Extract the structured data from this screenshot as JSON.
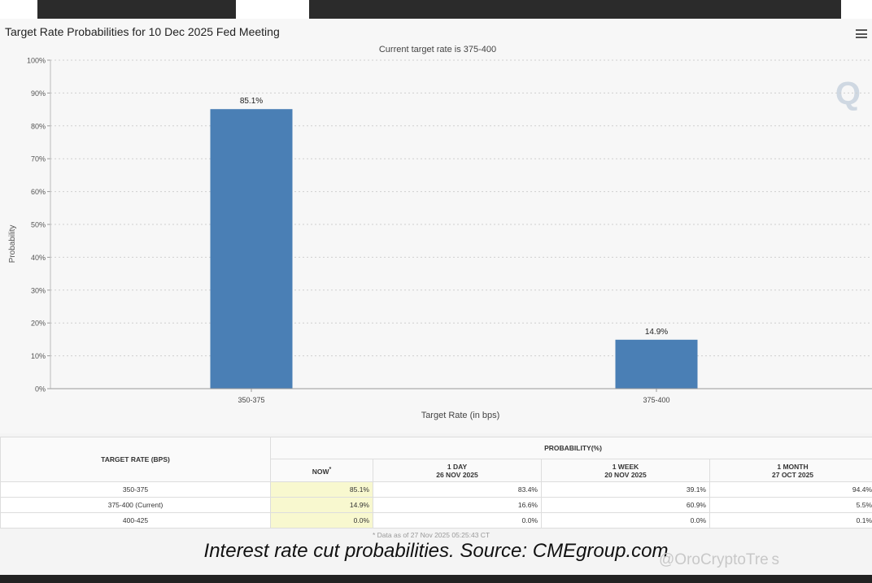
{
  "chart_title": "Target Rate Probabilities for 10 Dec 2025 Fed Meeting",
  "chart_data": {
    "type": "bar",
    "title": "Target Rate Probabilities for 10 Dec 2025 Fed Meeting",
    "subtitle": "Current target rate is 375-400",
    "categories": [
      "350-375",
      "375-400"
    ],
    "values": [
      85.1,
      14.9
    ],
    "value_labels": [
      "85.1%",
      "14.9%"
    ],
    "xlabel": "Target Rate (in bps)",
    "ylabel": "Probability",
    "ylim": [
      0,
      100
    ],
    "yticks": [
      "0%",
      "10%",
      "20%",
      "30%",
      "40%",
      "50%",
      "60%",
      "70%",
      "80%",
      "90%",
      "100%"
    ],
    "grid": true,
    "bar_color": "#4a7fb5"
  },
  "table": {
    "col_target": "TARGET RATE (BPS)",
    "col_prob": "PROBABILITY(%)",
    "sub_headers": [
      {
        "line1": "NOW",
        "line2": ""
      },
      {
        "line1": "1 DAY",
        "line2": "26 NOV 2025"
      },
      {
        "line1": "1 WEEK",
        "line2": "20 NOV 2025"
      },
      {
        "line1": "1 MONTH",
        "line2": "27 OCT 2025"
      }
    ],
    "now_mark": "*",
    "rows": [
      {
        "rate": "350-375",
        "now": "85.1%",
        "day": "83.4%",
        "week": "39.1%",
        "month": "94.4%"
      },
      {
        "rate": "375-400 (Current)",
        "now": "14.9%",
        "day": "16.6%",
        "week": "60.9%",
        "month": "5.5%"
      },
      {
        "rate": "400-425",
        "now": "0.0%",
        "day": "0.0%",
        "week": "0.0%",
        "month": "0.1%"
      }
    ],
    "footnote": "* Data as of 27 Nov 2025 05:25:43 CT"
  },
  "caption": "Interest rate cut probabilities. Source: CMEgroup.com",
  "credit": "@OroCryptoTre s",
  "icons": {
    "menu": "hamburger-menu-icon",
    "logo": "q-watermark-logo"
  }
}
